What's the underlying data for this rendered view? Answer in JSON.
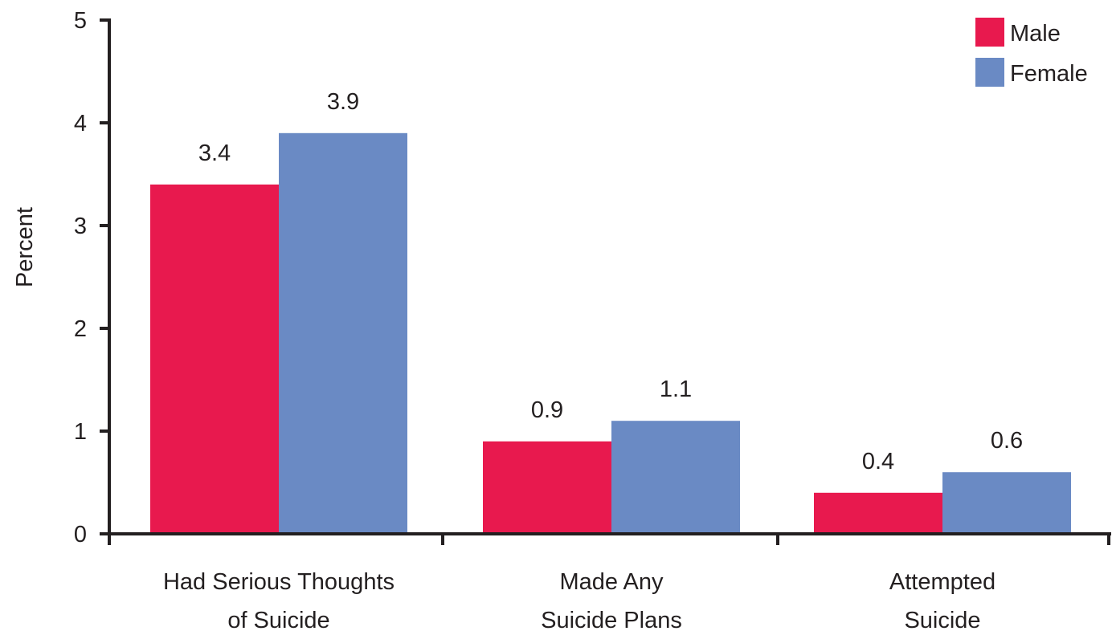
{
  "chart_data": {
    "type": "bar",
    "title": "",
    "xlabel": "",
    "ylabel": "Percent",
    "ylim": [
      0,
      5
    ],
    "yticks": [
      "0",
      "1",
      "2",
      "3",
      "4",
      "5"
    ],
    "categories": [
      [
        "Had Serious Thoughts",
        "of Suicide"
      ],
      [
        "Made Any",
        "Suicide Plans"
      ],
      [
        "Attempted",
        "Suicide"
      ]
    ],
    "series": [
      {
        "name": "Male",
        "color": "#e8194e",
        "values": [
          3.4,
          0.9,
          0.4
        ],
        "labels": [
          "3.4",
          "0.9",
          "0.4"
        ]
      },
      {
        "name": "Female",
        "color": "#6a8ac4",
        "values": [
          3.9,
          1.1,
          0.6
        ],
        "labels": [
          "3.9",
          "1.1",
          "0.6"
        ]
      }
    ],
    "legend_position": "top-right",
    "grid": false
  }
}
